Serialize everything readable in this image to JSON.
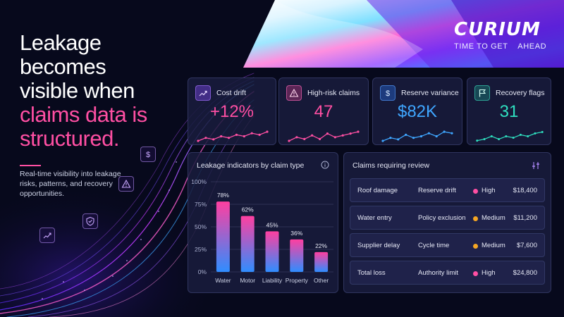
{
  "brand": {
    "name": "CURIUM",
    "tagline": "TIME TO GET    AHEAD"
  },
  "hero": {
    "title_line1": "Leakage",
    "title_line2": "becomes",
    "title_line3": "visible when",
    "title_accent_line1": "claims data is",
    "title_accent_line2": "structured.",
    "description": "Real-time visibility into leakage risks, patterns, and recovery opportunities."
  },
  "kpis": [
    {
      "label": "Cost drift",
      "value": "+12%",
      "icon": "trend-up-icon",
      "accent": "#ff4fa3",
      "spark": [
        3,
        5,
        4,
        6,
        5,
        7,
        6,
        8,
        7,
        9
      ]
    },
    {
      "label": "High-risk claims",
      "value": "47",
      "icon": "warning-icon",
      "accent": "#ff4fa3",
      "spark": [
        3,
        5,
        4,
        6,
        4,
        7,
        5,
        6,
        7,
        8
      ]
    },
    {
      "label": "Reserve variance",
      "value": "$82K",
      "icon": "dollar-icon",
      "accent": "#3fa6ff",
      "spark": [
        3,
        5,
        4,
        7,
        5,
        6,
        8,
        6,
        9,
        8
      ]
    },
    {
      "label": "Recovery flags",
      "value": "31",
      "icon": "flag-icon",
      "accent": "#2fe0c0",
      "spark": [
        3,
        4,
        6,
        4,
        6,
        5,
        7,
        6,
        8,
        9
      ]
    }
  ],
  "chart_panel": {
    "title": "Leakage indicators by claim type"
  },
  "chart_data": {
    "type": "bar",
    "title": "Leakage indicators by claim type",
    "categories": [
      "Water",
      "Motor",
      "Liability",
      "Property",
      "Other"
    ],
    "values": [
      78,
      62,
      45,
      36,
      22
    ],
    "value_labels": [
      "78%",
      "62%",
      "45%",
      "36%",
      "22%"
    ],
    "ylim": [
      0,
      100
    ],
    "yticks": [
      "0%",
      "25%",
      "50%",
      "75%",
      "100%"
    ],
    "ytick_values": [
      0,
      25,
      50,
      75,
      100
    ],
    "grid": true,
    "colors": {
      "top": "#ff3fa0",
      "bottom": "#2f8dff"
    }
  },
  "review_panel": {
    "title": "Claims requiring review",
    "rows": [
      {
        "type": "Roof damage",
        "reason": "Reserve drift",
        "severity": "High",
        "severity_color": "#ff4fa3",
        "amount": "$18,400"
      },
      {
        "type": "Water entry",
        "reason": "Policy exclusion",
        "severity": "Medium",
        "severity_color": "#f5a623",
        "amount": "$11,200"
      },
      {
        "type": "Supplier delay",
        "reason": "Cycle time",
        "severity": "Medium",
        "severity_color": "#f5a623",
        "amount": "$7,600"
      },
      {
        "type": "Total loss",
        "reason": "Authority limit",
        "severity": "High",
        "severity_color": "#ff4fa3",
        "amount": "$24,800"
      }
    ]
  },
  "floating_icons": [
    "dollar-icon",
    "warning-icon",
    "shield-check-icon",
    "growth-chart-icon"
  ]
}
